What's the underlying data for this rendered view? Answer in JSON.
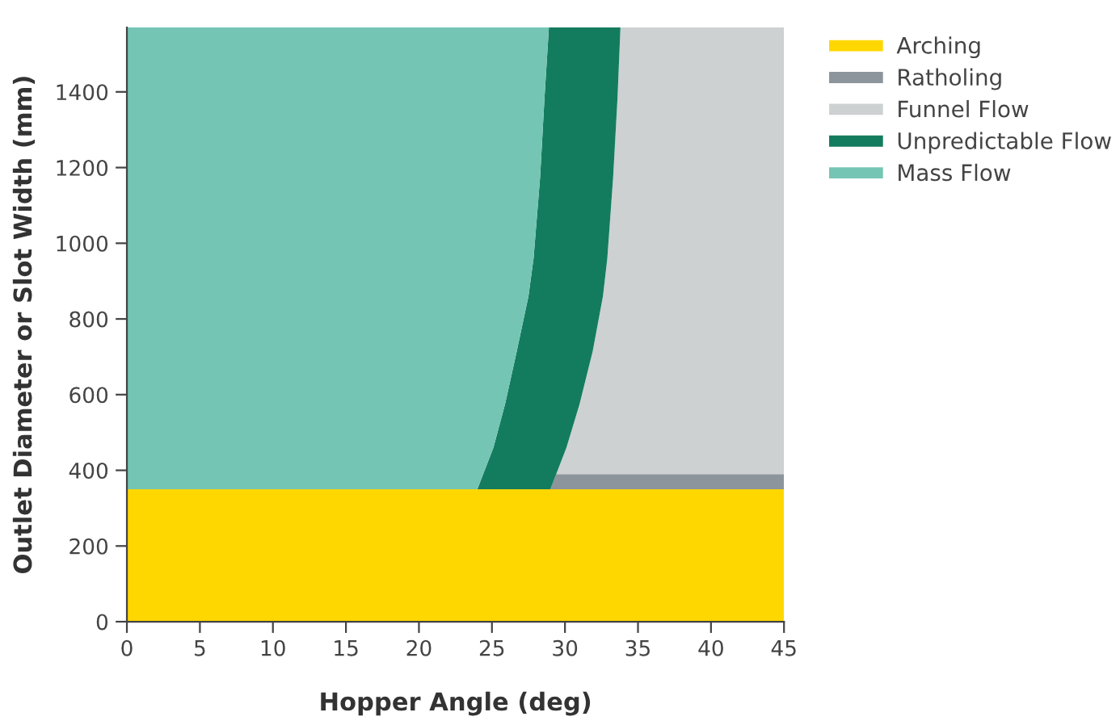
{
  "chart_data": {
    "type": "area",
    "stacked": true,
    "xlabel": "Hopper Angle (deg)",
    "ylabel": "Outlet Diameter or Slot Width (mm)",
    "xlim": [
      0,
      45
    ],
    "ylim": [
      0,
      1570
    ],
    "xticks": [
      0,
      5,
      10,
      15,
      20,
      25,
      30,
      35,
      40,
      45
    ],
    "yticks": [
      0,
      200,
      400,
      600,
      800,
      1000,
      1200,
      1400
    ],
    "grid": false,
    "legend": "top right",
    "x": [
      0,
      24.0,
      25.1,
      25.9,
      26.7,
      27.5,
      27.85,
      28.3,
      28.6,
      28.9,
      29.0,
      29.4,
      30.1,
      31.0,
      31.9,
      32.6,
      32.9,
      33.3,
      33.6,
      33.8,
      45
    ],
    "series": [
      {
        "name": "Arching",
        "color": "#ffd700",
        "values": [
          350,
          350,
          350,
          350,
          350,
          350,
          350,
          350,
          350,
          350,
          350,
          350,
          350,
          350,
          350,
          350,
          350,
          350,
          350,
          350,
          350
        ]
      },
      {
        "name": "Ratholing",
        "color": "#8c949c",
        "values": [
          null,
          null,
          null,
          null,
          null,
          null,
          null,
          null,
          null,
          null,
          0,
          40,
          40,
          40,
          40,
          40,
          40,
          40,
          40,
          40,
          40
        ]
      },
      {
        "name": "Funnel Flow",
        "color": "#cdd1d2",
        "values": [
          null,
          null,
          null,
          null,
          null,
          null,
          null,
          null,
          null,
          null,
          null,
          0,
          70,
          185,
          325,
          470,
          570,
          785,
          995,
          1180,
          1180
        ]
      },
      {
        "name": "Unpredictable Flow",
        "color": "#147c5e",
        "values": [
          null,
          0,
          110,
          225,
          365,
          510,
          610,
          825,
          1035,
          1220,
          1220,
          1180,
          1110,
          995,
          855,
          710,
          610,
          395,
          185,
          0,
          null
        ]
      },
      {
        "name": "Mass Flow",
        "color": "#74c5b4",
        "values": [
          1220,
          1220,
          1110,
          995,
          855,
          710,
          610,
          395,
          185,
          0,
          null,
          null,
          null,
          null,
          null,
          null,
          null,
          null,
          null,
          null,
          null
        ]
      }
    ]
  }
}
